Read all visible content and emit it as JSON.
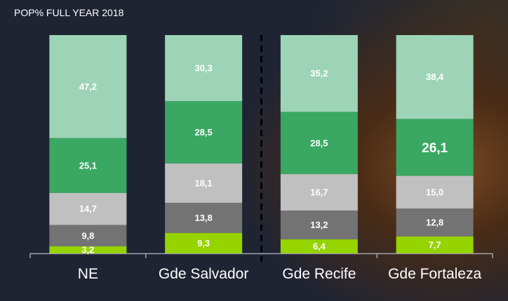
{
  "chart_data": {
    "type": "bar",
    "stacked": true,
    "title": "POP% FULL YEAR 2018",
    "categories": [
      "NE",
      "Gde Salvador",
      "Gde Recife",
      "Gde Fortaleza"
    ],
    "series": [
      {
        "name": "segment-1",
        "color": "#96d400",
        "values": [
          3.2,
          9.3,
          6.4,
          7.7
        ],
        "labels": [
          "3,2",
          "9,3",
          "6,4",
          "7,7"
        ]
      },
      {
        "name": "segment-2",
        "color": "#737373",
        "values": [
          9.8,
          13.8,
          13.2,
          12.8
        ],
        "labels": [
          "9,8",
          "13,8",
          "13,2",
          "12,8"
        ]
      },
      {
        "name": "segment-3",
        "color": "#c0c0c0",
        "values": [
          14.7,
          18.1,
          16.7,
          15.0
        ],
        "labels": [
          "14,7",
          "18,1",
          "16,7",
          "15,0"
        ]
      },
      {
        "name": "segment-4",
        "color": "#3aa862",
        "values": [
          25.1,
          28.5,
          28.5,
          26.1
        ],
        "labels": [
          "25,1",
          "28,5",
          "28,5",
          "26,1"
        ]
      },
      {
        "name": "segment-5",
        "color": "#9dd4b8",
        "values": [
          47.2,
          30.3,
          35.2,
          38.4
        ],
        "labels": [
          "47,2",
          "30,3",
          "35,2",
          "38,4"
        ]
      }
    ],
    "ylim": [
      0,
      100
    ],
    "grid": false,
    "highlighted_label": "26,1"
  }
}
